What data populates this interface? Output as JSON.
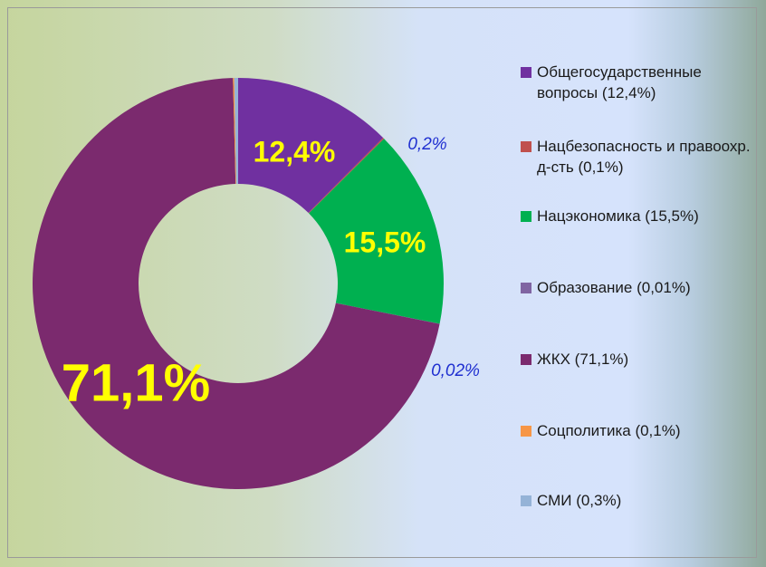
{
  "chart_data": {
    "type": "pie",
    "categories": [
      "Общегосударственные вопросы (12,4%)",
      "Нацбезопасность и правоохр. д-сть (0,1%)",
      "Нацэкономика (15,5%)",
      "Образование (0,01%)",
      "ЖКХ (71,1%)",
      "Соцполитика (0,1%)",
      "СМИ (0,3%)"
    ],
    "values": [
      12.4,
      0.1,
      15.5,
      0.01,
      71.1,
      0.1,
      0.3
    ],
    "colors": [
      "#7030a0",
      "#c0504d",
      "#00b050",
      "#8064a2",
      "#7b2a6e",
      "#f79646",
      "#95b3d7"
    ],
    "annotations": [
      "12,4%",
      "15,5%",
      "71,1%",
      "0,2%",
      "0,02%"
    ],
    "legend": "right"
  }
}
